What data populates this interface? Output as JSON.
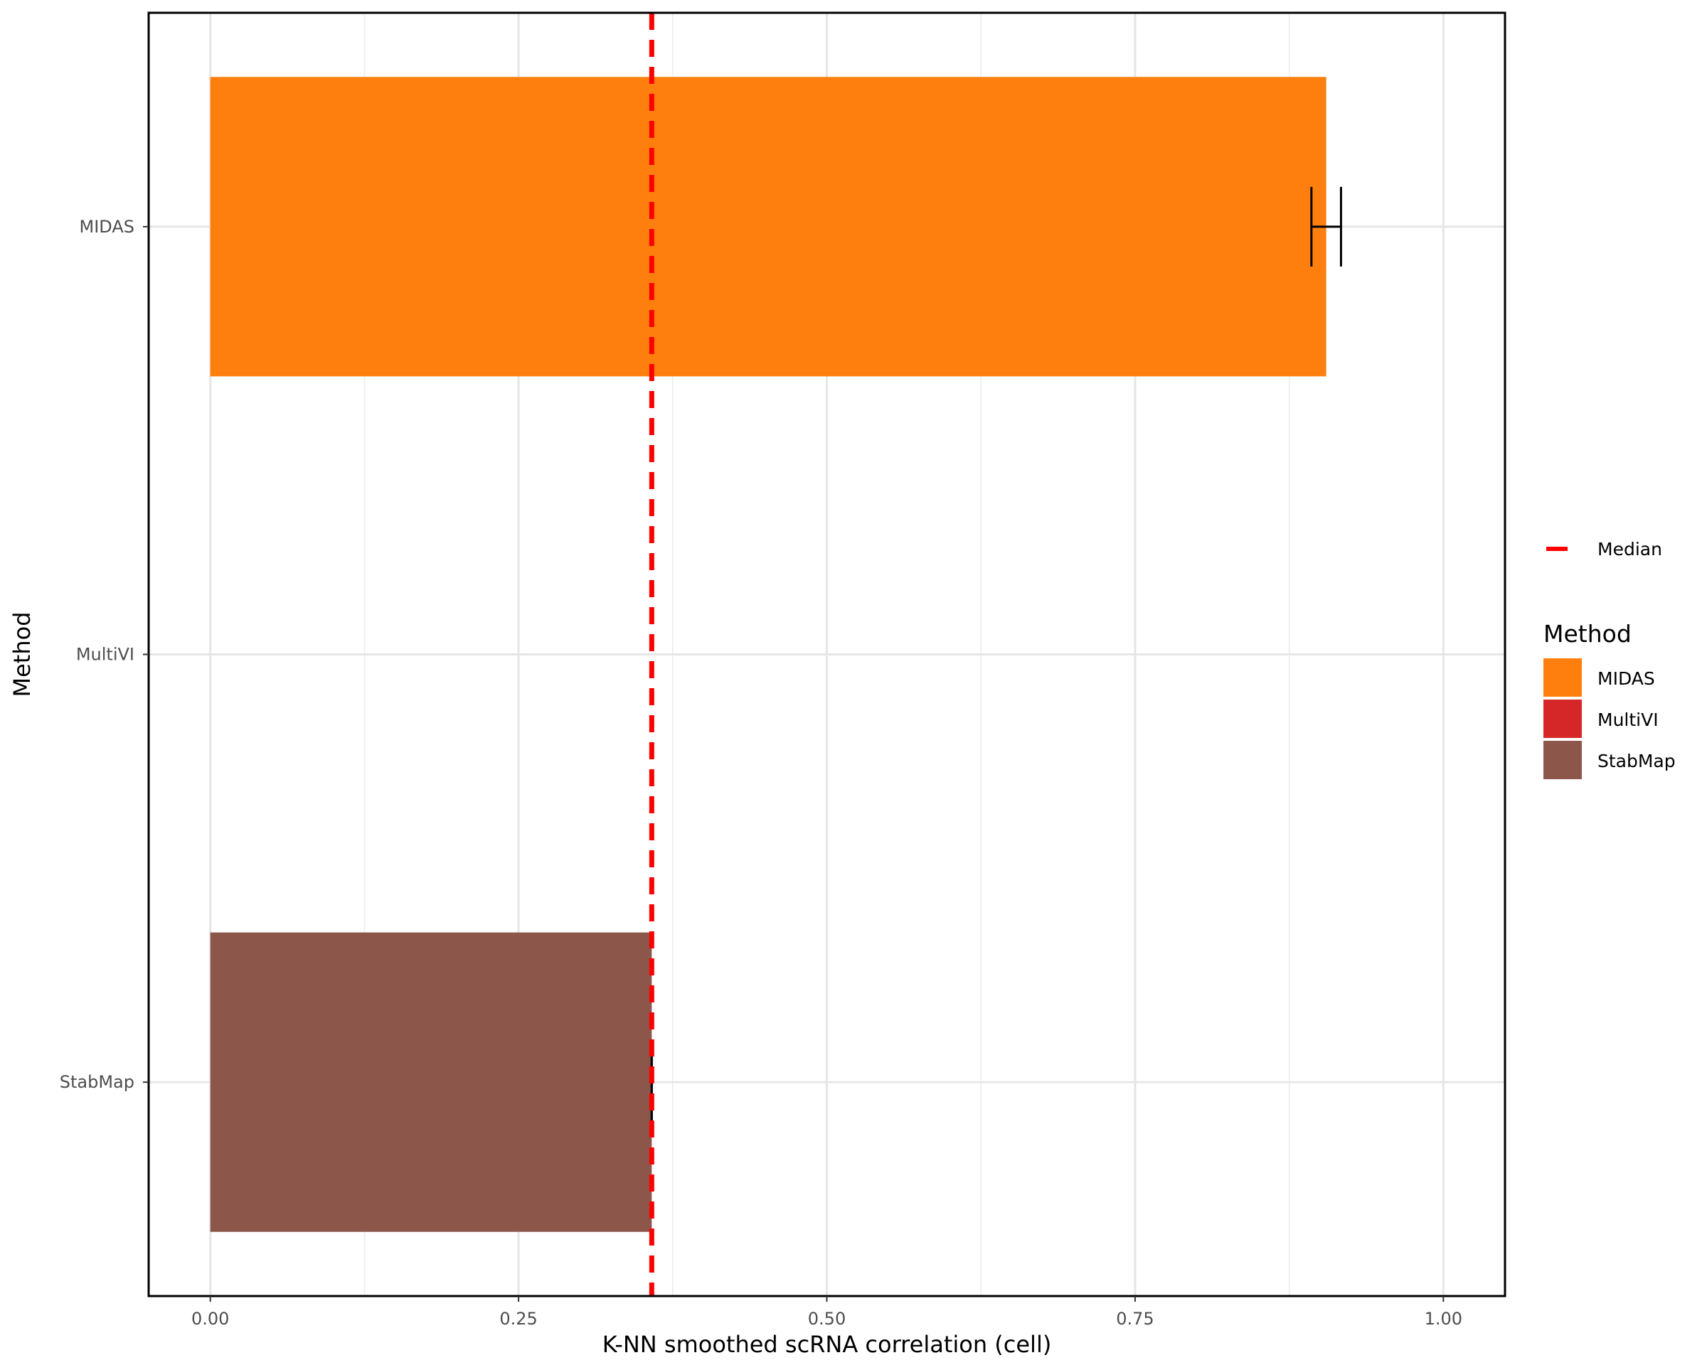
{
  "chart_data": {
    "type": "bar",
    "orientation": "horizontal",
    "categories": [
      "MIDAS",
      "MultiVI",
      "StabMap"
    ],
    "values": [
      0.905,
      null,
      0.358
    ],
    "errors": [
      {
        "low": 0.893,
        "high": 0.917
      },
      null,
      {
        "low": 0.358,
        "high": 0.358
      }
    ],
    "colors": [
      "#ff7f0e",
      "#d62728",
      "#8c564b"
    ],
    "median": {
      "value": 0.358,
      "label": "Median",
      "color": "#ff0000"
    },
    "xlabel": "K-NN smoothed scRNA correlation (cell)",
    "ylabel": "Method",
    "xlim": [
      -0.05,
      1.05
    ],
    "xticks": [
      0.0,
      0.25,
      0.5,
      0.75,
      1.0
    ],
    "xtick_labels": [
      "0.00",
      "0.25",
      "0.50",
      "0.75",
      "1.00"
    ],
    "grid": true,
    "legend": {
      "position": "right",
      "title": "Method",
      "items": [
        {
          "label": "MIDAS",
          "color": "#ff7f0e"
        },
        {
          "label": "MultiVI",
          "color": "#d62728"
        },
        {
          "label": "StabMap",
          "color": "#8c564b"
        }
      ]
    }
  }
}
